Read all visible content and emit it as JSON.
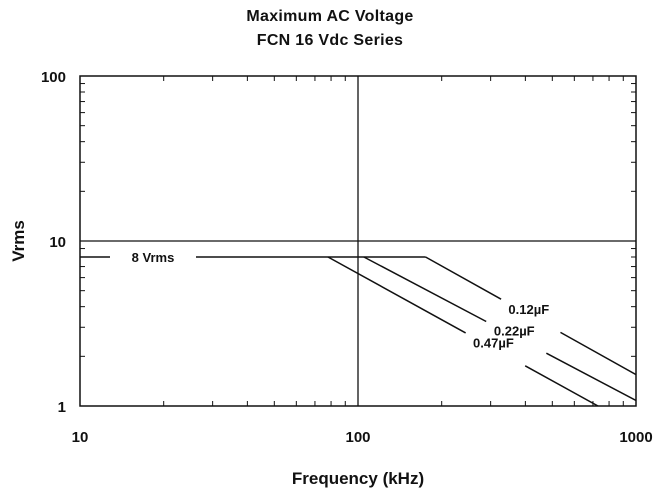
{
  "chart_data": {
    "type": "line",
    "title": "Maximum AC Voltage",
    "subtitle": "FCN 16 Vdc Series",
    "xlabel": "Frequency (kHz)",
    "ylabel": "Vrms",
    "xscale": "log",
    "yscale": "log",
    "xlim": [
      10,
      1000
    ],
    "ylim": [
      1,
      10
    ],
    "x_ticks": [
      "10",
      "100",
      "1000"
    ],
    "y_ticks": [
      "1",
      "10",
      "100"
    ],
    "grid": "major lines at x=100 and y=10",
    "plateau_label": "8 Vrms",
    "series": [
      {
        "name": "0.12µF",
        "points": [
          [
            10,
            8
          ],
          [
            175,
            8
          ],
          [
            1000,
            1.55
          ]
        ]
      },
      {
        "name": "0.22µF",
        "points": [
          [
            10,
            8
          ],
          [
            105,
            8
          ],
          [
            1000,
            1.08
          ]
        ]
      },
      {
        "name": "0.47µF",
        "points": [
          [
            10,
            8
          ],
          [
            78,
            8
          ],
          [
            730,
            1
          ]
        ]
      }
    ],
    "colors": {
      "line": "#111111",
      "background": "#ffffff"
    }
  }
}
